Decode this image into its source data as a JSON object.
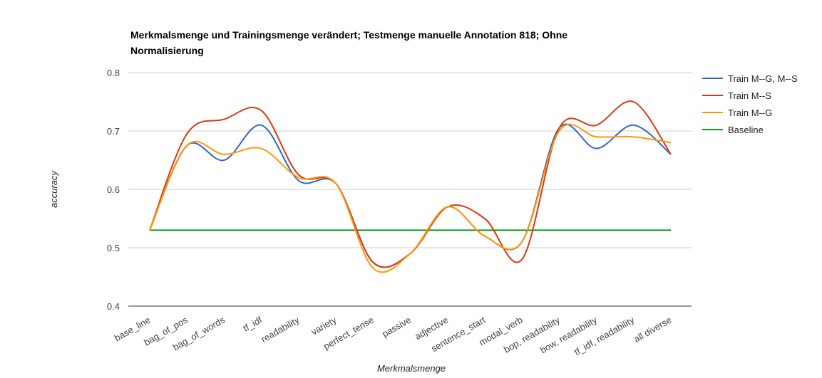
{
  "chart_data": {
    "type": "line",
    "title_line1": "Merkmalsmenge und Trainingsmenge verändert; Testmenge manuelle Annotation 818; Ohne",
    "title_line2": "Normalisierung",
    "xlabel": "Merkmalsmenge",
    "ylabel": "accuracy",
    "ylim": [
      0.4,
      0.8
    ],
    "yticks": [
      "0.4",
      "0.5",
      "0.6",
      "0.7",
      "0.8"
    ],
    "ytick_values": [
      0.4,
      0.5,
      0.6,
      0.7,
      0.8
    ],
    "grid": true,
    "legend_position": "right",
    "categories": [
      "base_line",
      "bag_of_pos",
      "bag_of_words",
      "tf_idf",
      "readability",
      "variety",
      "perfect_tense",
      "passive",
      "adjective",
      "sentence_start",
      "modal_verb",
      "bop, readability",
      "bow, readability",
      "tf_idf, readability",
      "all diverse"
    ],
    "series": [
      {
        "name": "Train M--G, M--S",
        "color": "#3366cc",
        "values": [
          0.53,
          0.675,
          0.65,
          0.71,
          0.615,
          0.61,
          0.475,
          0.49,
          0.57,
          0.52,
          0.51,
          0.705,
          0.67,
          0.71,
          0.66
        ]
      },
      {
        "name": "Train M--S",
        "color": "#dc3912",
        "values": [
          0.53,
          0.695,
          0.72,
          0.735,
          0.625,
          0.61,
          0.475,
          0.49,
          0.57,
          0.55,
          0.48,
          0.705,
          0.71,
          0.75,
          0.66
        ]
      },
      {
        "name": "Train M--G",
        "color": "#ff9900",
        "values": [
          0.53,
          0.675,
          0.66,
          0.67,
          0.62,
          0.61,
          0.465,
          0.49,
          0.57,
          0.52,
          0.51,
          0.7,
          0.69,
          0.69,
          0.68
        ]
      },
      {
        "name": "Baseline",
        "color": "#109618",
        "values": [
          0.53,
          0.53,
          0.53,
          0.53,
          0.53,
          0.53,
          0.53,
          0.53,
          0.53,
          0.53,
          0.53,
          0.53,
          0.53,
          0.53,
          0.53
        ]
      }
    ]
  }
}
